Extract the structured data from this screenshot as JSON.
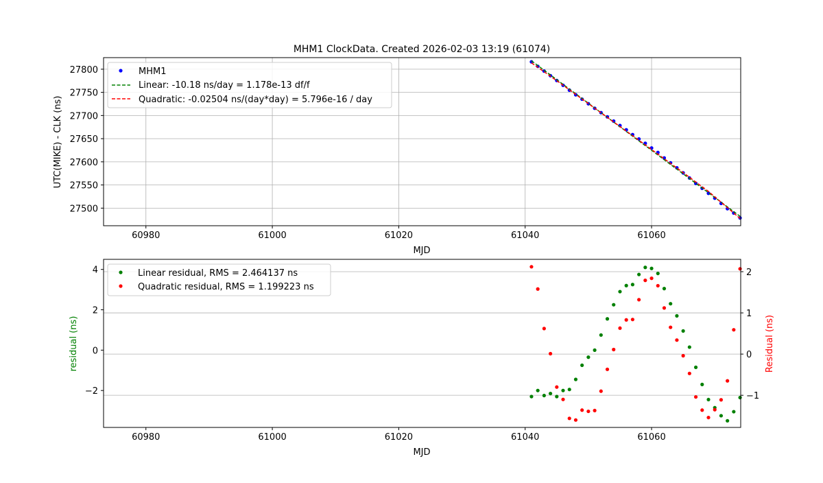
{
  "chart_data": [
    {
      "type": "scatter",
      "title": "MHM1 ClockData. Created 2026-02-03 13:19 (61074)",
      "xlabel": "MJD",
      "ylabel": "UTC(MIKE) - CLK (ns)",
      "xlim": [
        60973.3,
        61074.1
      ],
      "ylim": [
        27462,
        27825
      ],
      "xticks": [
        60980,
        61000,
        61020,
        61040,
        61060
      ],
      "yticks": [
        27500,
        27550,
        27600,
        27650,
        27700,
        27750,
        27800
      ],
      "grid": true,
      "legend_position": "upper-left",
      "series": [
        {
          "name": "MHM1",
          "style": "points",
          "color": "#0000ff",
          "x": [
            61041,
            61042,
            61043,
            61044,
            61045,
            61046,
            61047,
            61048,
            61049,
            61050,
            61051,
            61052,
            61053,
            61054,
            61055,
            61056,
            61057,
            61058,
            61059,
            61060,
            61061,
            61062,
            61063,
            61064,
            61065,
            61066,
            61067,
            61068,
            61069,
            61070,
            61071,
            61072,
            61073,
            61074
          ],
          "y": [
            27815.9,
            27806.2,
            27795.9,
            27786.0,
            27775.6,
            27765.3,
            27754.8,
            27744.8,
            27735.3,
            27725.4,
            27715.6,
            27706.2,
            27697.1,
            27687.9,
            27678.3,
            27669.1,
            27658.8,
            27649.3,
            27640.0,
            27629.8,
            27620.2,
            27608.3,
            27597.8,
            27587.0,
            27576.1,
            27565.1,
            27553.5,
            27542.8,
            27532.0,
            27521.5,
            27510.2,
            27498.8,
            27489.4,
            27478.8
          ]
        },
        {
          "name": "Linear: -10.18 ns/day = 1.178e-13 df/f",
          "style": "dashed",
          "color": "#008000",
          "x": [
            61041,
            61074
          ],
          "y": [
            27818.2,
            27482.3
          ]
        },
        {
          "name": "Quadratic: -0.02504 ns/(day*day) = 5.796e-16 / day",
          "style": "dashed",
          "color": "#ff0000",
          "x": [
            61041,
            61045,
            61049,
            61053,
            61057,
            61061,
            61065,
            61069,
            61074
          ],
          "y": [
            27813.8,
            27775.2,
            27735.7,
            27695.9,
            27656.5,
            27616.5,
            27576.7,
            27536.1,
            27477.7
          ]
        }
      ]
    },
    {
      "type": "scatter",
      "xlabel": "MJD",
      "ylabel": "residual (ns)",
      "ylabel_right": "Residual (ns)",
      "xlim": [
        60973.3,
        61074.1
      ],
      "ylim": [
        -3.83,
        4.5
      ],
      "ylim_right": [
        -1.78,
        2.3
      ],
      "xticks": [
        60980,
        61000,
        61020,
        61040,
        61060
      ],
      "yticks": [
        -2,
        0,
        2,
        4
      ],
      "yticks_right": [
        -1,
        0,
        1,
        2
      ],
      "grid": true,
      "legend_position": "upper-left",
      "series": [
        {
          "name": "Linear residual, RMS = 2.464137 ns",
          "axis": "left",
          "color": "#008000",
          "x": [
            61041,
            61042,
            61043,
            61044,
            61045,
            61046,
            61047,
            61048,
            61049,
            61050,
            61051,
            61052,
            61053,
            61054,
            61055,
            61056,
            61057,
            61058,
            61059,
            61060,
            61061,
            61062,
            61063,
            61064,
            61065,
            61066,
            61067,
            61068,
            61069,
            61070,
            61071,
            61072,
            61073,
            61074
          ],
          "y": [
            -2.3,
            -2.0,
            -2.25,
            -2.15,
            -2.3,
            -2.0,
            -1.95,
            -1.45,
            -0.75,
            -0.35,
            0.0,
            0.75,
            1.55,
            2.25,
            2.9,
            3.2,
            3.25,
            3.75,
            4.1,
            4.05,
            3.8,
            3.05,
            2.3,
            1.7,
            0.95,
            0.15,
            -0.85,
            -1.7,
            -2.45,
            -2.85,
            -3.25,
            -3.5,
            -3.05,
            -2.35
          ]
        },
        {
          "name": "Quadratic residual, RMS = 1.199223 ns",
          "axis": "right",
          "color": "#ff0000",
          "x": [
            61041,
            61042,
            61043,
            61044,
            61045,
            61046,
            61047,
            61048,
            61049,
            61050,
            61051,
            61052,
            61053,
            61054,
            61055,
            61056,
            61057,
            61058,
            61059,
            61060,
            61061,
            61062,
            61063,
            61064,
            61065,
            61066,
            61067,
            61068,
            61069,
            61070,
            61071,
            61072,
            61073,
            61074
          ],
          "y": [
            2.12,
            1.58,
            0.62,
            0.01,
            -0.8,
            -1.1,
            -1.56,
            -1.6,
            -1.36,
            -1.39,
            -1.37,
            -0.9,
            -0.37,
            0.11,
            0.63,
            0.83,
            0.84,
            1.32,
            1.79,
            1.84,
            1.66,
            1.12,
            0.65,
            0.34,
            -0.04,
            -0.47,
            -1.04,
            -1.36,
            -1.54,
            -1.35,
            -1.11,
            -0.65,
            0.59,
            2.07
          ]
        }
      ]
    }
  ]
}
